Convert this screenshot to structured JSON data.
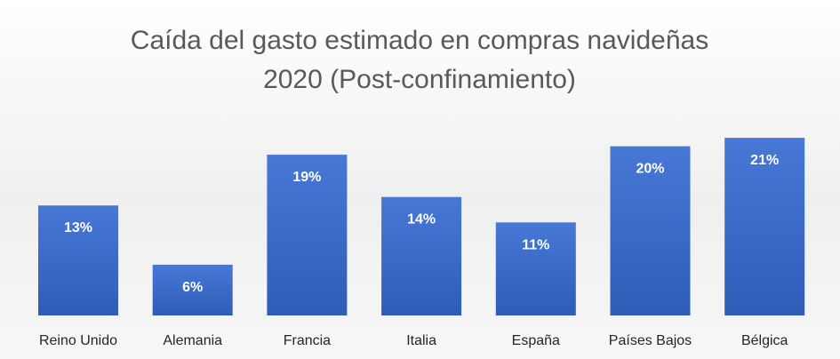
{
  "chart_data": {
    "type": "bar",
    "title": "Caída del gasto estimado en compras navideñas",
    "subtitle": "2020 (Post-confinamiento)",
    "categories": [
      "Reino Unido",
      "Alemania",
      "Francia",
      "Italia",
      "España",
      "Países Bajos",
      "Bélgica"
    ],
    "values": [
      13,
      6,
      19,
      14,
      11,
      20,
      21
    ],
    "data_labels": [
      "13%",
      "6%",
      "19%",
      "14%",
      "11%",
      "20%",
      "21%"
    ],
    "xlabel": "",
    "ylabel": "",
    "ylim": [
      0,
      25
    ],
    "grid": false,
    "legend": "none",
    "colors": {
      "bar_top": "#4778D6",
      "bar_bottom": "#2E5DB8",
      "data_label": "#FFFFFF",
      "title": "#595959",
      "category_label": "#262626",
      "background_top": "#FFFFFF",
      "background_mid": "#EFEFEF",
      "background_bottom": "#F7F7F7"
    }
  }
}
